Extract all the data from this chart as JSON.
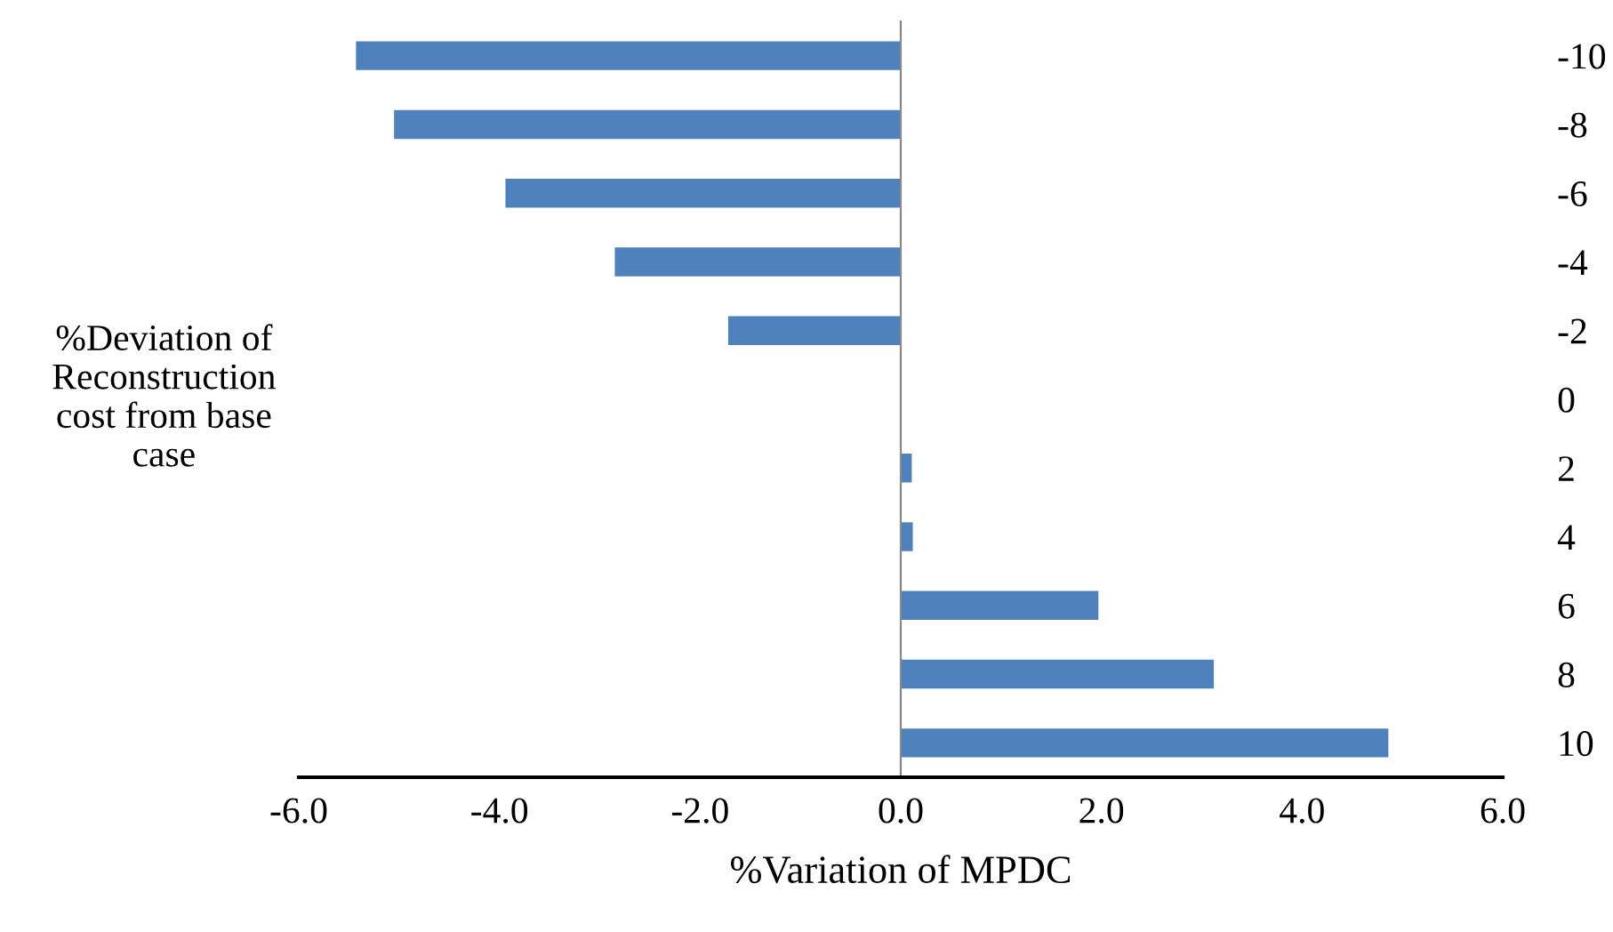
{
  "chart_data": {
    "type": "bar",
    "orientation": "horizontal",
    "xlabel": "%Variation of MPDC",
    "ylabel": "%Deviation of\nReconstruction\ncost from base\ncase",
    "categories": [
      "-10",
      "-8",
      "-6",
      "-4",
      "-2",
      "0",
      "2",
      "4",
      "6",
      "8",
      "10"
    ],
    "values": [
      -5.43,
      -5.05,
      -3.94,
      -2.85,
      -1.72,
      0,
      0.11,
      0.12,
      1.97,
      3.12,
      4.86
    ],
    "color": "#4f81bd",
    "xlim": [
      -6,
      6
    ],
    "xticks": [
      {
        "value": -6,
        "label": "-6.0"
      },
      {
        "value": -4,
        "label": "-4.0"
      },
      {
        "value": -2,
        "label": "-2.0"
      },
      {
        "value": 0,
        "label": "0.0"
      },
      {
        "value": 2,
        "label": "2.0"
      },
      {
        "value": 4,
        "label": "4.0"
      },
      {
        "value": 6,
        "label": "6.0"
      }
    ],
    "legend": false
  }
}
